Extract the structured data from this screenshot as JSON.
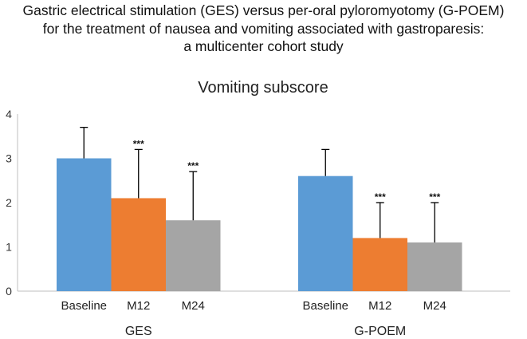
{
  "header": {
    "lines": [
      "Gastric electrical stimulation (GES) versus per-oral pyloromyotomy (G-POEM)",
      "for the treatment of nausea and vomiting associated with gastroparesis:",
      "a multicenter cohort study"
    ]
  },
  "chart_data": {
    "type": "bar",
    "title": "Vomiting subscore",
    "xlabel": "",
    "ylabel": "",
    "ylim": [
      0,
      4
    ],
    "yticks": [
      0,
      1,
      2,
      3,
      4
    ],
    "grid": false,
    "legend": "none",
    "significance_marker": "***",
    "groups": [
      {
        "name": "GES",
        "bars": [
          {
            "label": "Baseline",
            "value": 3.0,
            "error": 0.7,
            "significance": ""
          },
          {
            "label": "M12",
            "value": 2.1,
            "error": 1.1,
            "significance": "***"
          },
          {
            "label": "M24",
            "value": 1.6,
            "error": 1.1,
            "significance": "***"
          }
        ]
      },
      {
        "name": "G-POEM",
        "bars": [
          {
            "label": "Baseline",
            "value": 2.6,
            "error": 0.6,
            "significance": ""
          },
          {
            "label": "M12",
            "value": 1.2,
            "error": 0.8,
            "significance": "***"
          },
          {
            "label": "M24",
            "value": 1.1,
            "error": 0.9,
            "significance": "***"
          }
        ]
      }
    ],
    "colors": {
      "Baseline": "#5b9bd5",
      "M12": "#ed7d31",
      "M24": "#a5a5a5"
    }
  }
}
